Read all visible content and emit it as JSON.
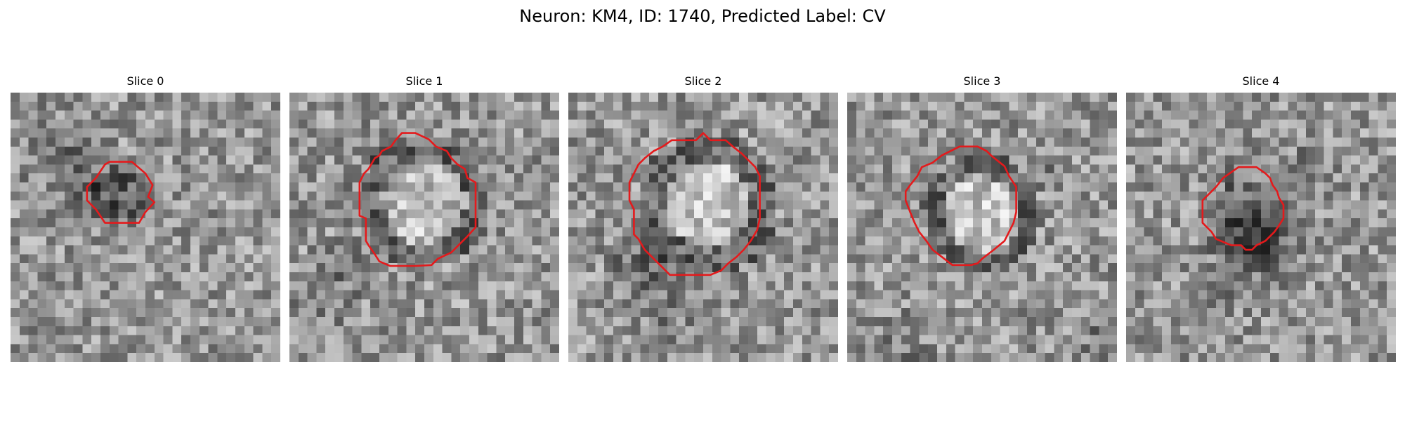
{
  "figure": {
    "title": "Neuron: KM4, ID: 1740, Predicted Label: CV",
    "grid_size": 30,
    "colormap": "gray",
    "outline_color": "#e41a1c",
    "axes_visible": false
  },
  "slices": [
    {
      "title": "Slice 0",
      "contour_detail": "small dark blob, outline ~9 px across",
      "seed": 11
    },
    {
      "title": "Slice 1",
      "contour_detail": "large bright core with dark rim",
      "seed": 23
    },
    {
      "title": "Slice 2",
      "contour_detail": "large bright core with dark rim",
      "seed": 37
    },
    {
      "title": "Slice 3",
      "contour_detail": "medium bright core with dark ring",
      "seed": 41
    },
    {
      "title": "Slice 4",
      "contour_detail": "small dark blob",
      "seed": 53
    }
  ]
}
